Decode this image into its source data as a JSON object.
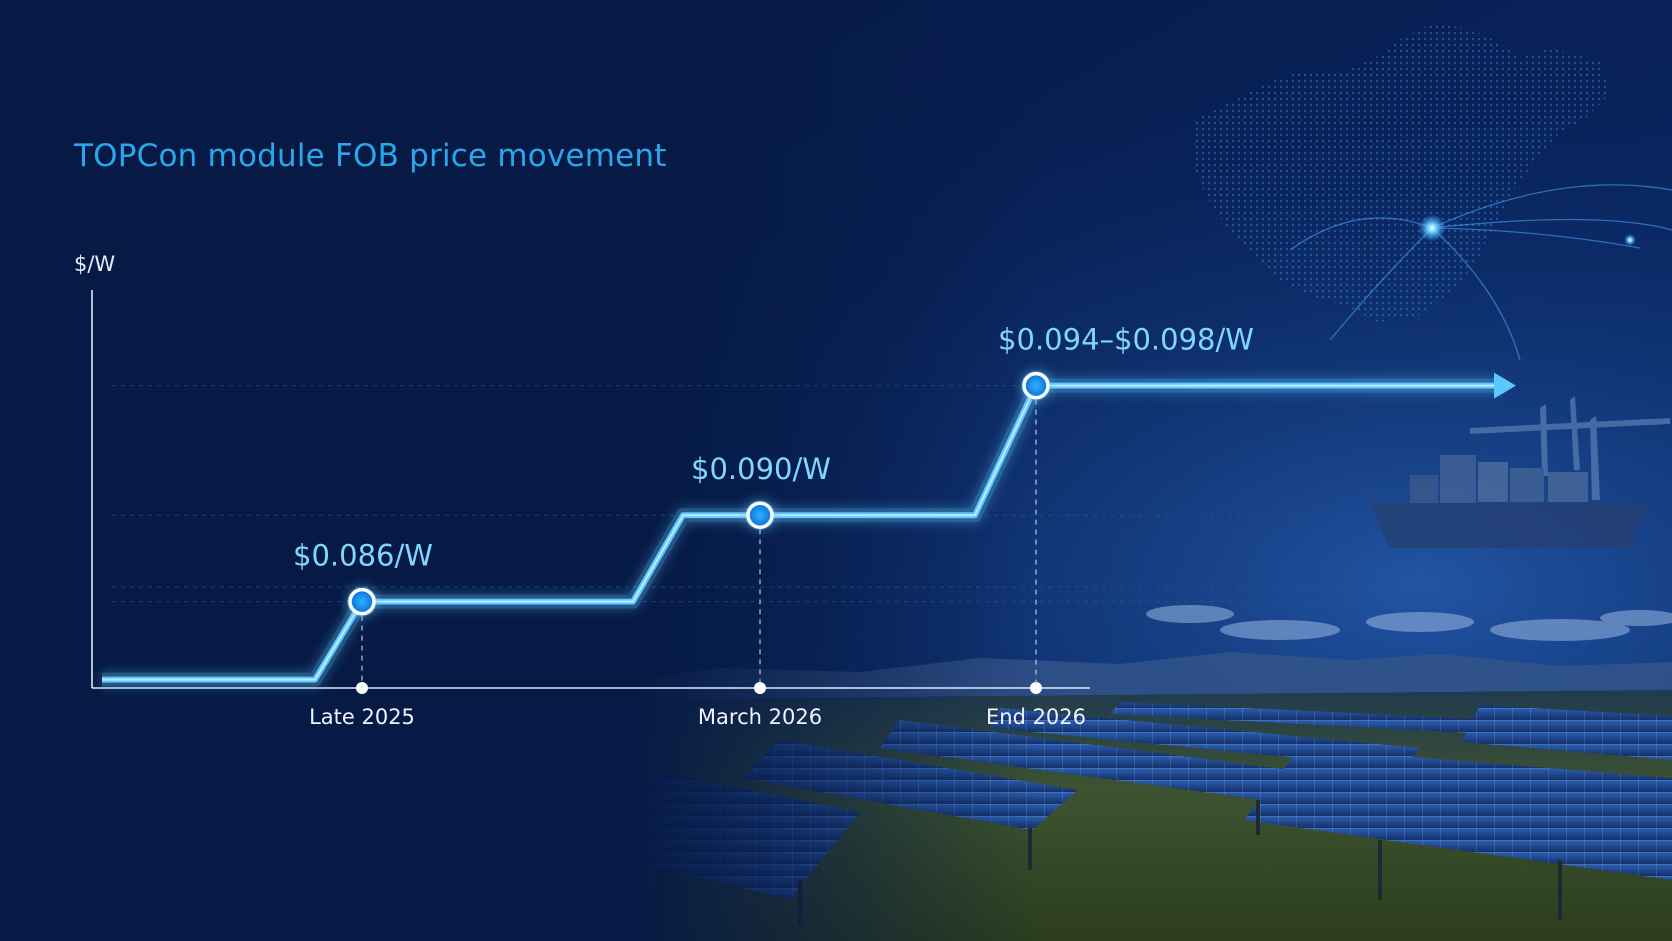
{
  "chart_data": {
    "type": "line",
    "title": "TOPCon module FOB price movement",
    "ylabel": "$/W",
    "xlabel": "",
    "categories": [
      "Late 2025",
      "March 2026",
      "End 2026"
    ],
    "series": [
      {
        "values": [
          0.086,
          0.09,
          0.096
        ],
        "labels": [
          "$0.086/W",
          "$0.090/W",
          "$0.094–$0.098/W"
        ]
      }
    ],
    "grid": true,
    "line_color": "#5cc8ff",
    "title_color": "#2aa6ec"
  }
}
